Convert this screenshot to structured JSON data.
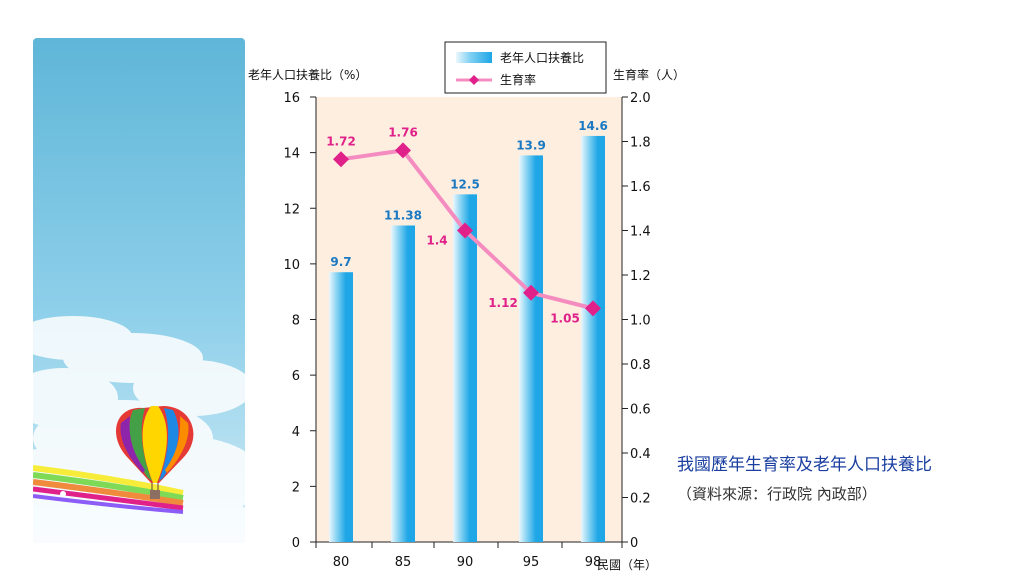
{
  "caption": {
    "title": "我國歷年生育率及老年人口扶養比",
    "source": "（資料來源：行政院 內政部）"
  },
  "colors": {
    "bar": "#1ea6e6",
    "line": "#f48cc0",
    "marker": "#e0218a",
    "plot_bg": "#fdeee0",
    "bar_label": "#1a79c2",
    "line_label": "#e0218a"
  },
  "chart_data": {
    "type": "bar",
    "categories": [
      "80",
      "85",
      "90",
      "95",
      "98"
    ],
    "xlabel": "民國（年）",
    "ylabel_left": "老年人口扶養比（%）",
    "ylabel_right": "生育率（人）",
    "ylim_left": [
      0,
      16
    ],
    "yticks_left": [
      "0",
      "2",
      "4",
      "6",
      "8",
      "10",
      "12",
      "14",
      "16"
    ],
    "ylim_right": [
      0,
      2.0
    ],
    "yticks_right": [
      "0",
      "0.2",
      "0.4",
      "0.6",
      "0.8",
      "1.0",
      "1.2",
      "1.4",
      "1.6",
      "1.8",
      "2.0"
    ],
    "grid": false,
    "legend_position": "top",
    "series": [
      {
        "name": "老年人口扶養比",
        "type": "bar",
        "axis": "left",
        "values": [
          9.7,
          11.38,
          12.5,
          13.9,
          14.6
        ],
        "labels": [
          "9.7",
          "11.38",
          "12.5",
          "13.9",
          "14.6"
        ]
      },
      {
        "name": "生育率",
        "type": "line",
        "axis": "right",
        "values": [
          1.72,
          1.76,
          1.4,
          1.12,
          1.05
        ],
        "labels": [
          "1.72",
          "1.76",
          "1.4",
          "1.12",
          "1.05"
        ]
      }
    ]
  }
}
